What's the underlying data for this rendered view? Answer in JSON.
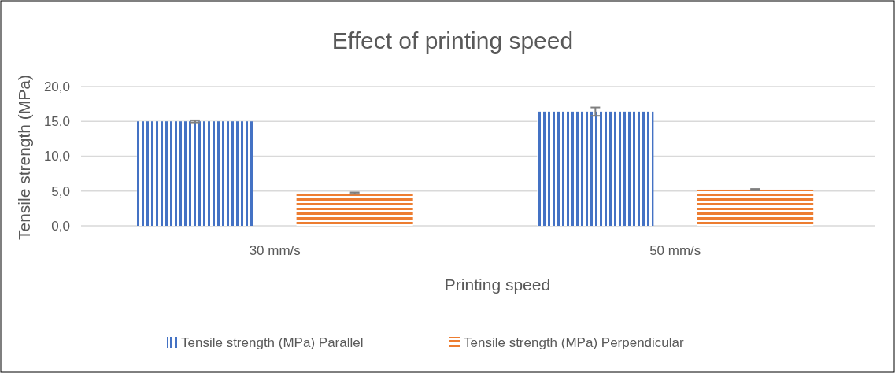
{
  "chart_data": {
    "type": "bar",
    "title": "Effect of printing speed",
    "xlabel": "Printing speed",
    "ylabel": "Tensile strength (MPa)",
    "categories": [
      "30 mm/s",
      "50 mm/s"
    ],
    "series": [
      {
        "name": "Tensile strength (MPa) Parallel",
        "color": "#4472c4",
        "values": [
          15.0,
          16.4
        ],
        "errors": [
          0.15,
          0.6
        ]
      },
      {
        "name": "Tensile strength (MPa) Perpendicular",
        "color": "#ed7d31",
        "values": [
          4.7,
          5.2
        ],
        "errors": [
          0.1,
          0.1
        ]
      }
    ],
    "ylim": [
      0,
      20
    ],
    "yticks": [
      {
        "value": 0,
        "label": "0,0"
      },
      {
        "value": 5,
        "label": "5,0"
      },
      {
        "value": 10,
        "label": "10,0"
      },
      {
        "value": 15,
        "label": "15,0"
      },
      {
        "value": 20,
        "label": "20,0"
      }
    ],
    "grid": "y",
    "legend": "bottom"
  }
}
